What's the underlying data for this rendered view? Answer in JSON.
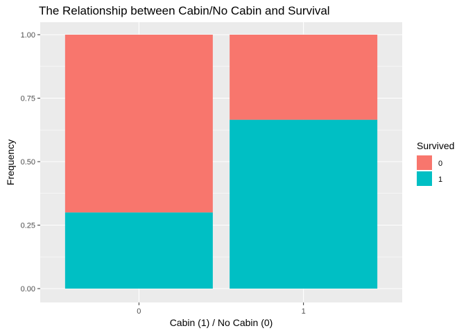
{
  "chart_data": {
    "type": "bar",
    "stacked": true,
    "title": "The Relationship between Cabin/No Cabin and Survival",
    "xlabel": "Cabin (1) / No Cabin (0)",
    "ylabel": "Frequency",
    "categories": [
      "0",
      "1"
    ],
    "series": [
      {
        "name": "0",
        "color": "#F8766D",
        "values": [
          0.7,
          0.335
        ]
      },
      {
        "name": "1",
        "color": "#00BFC4",
        "values": [
          0.3,
          0.665
        ]
      }
    ],
    "ylim": [
      0,
      1
    ],
    "yticks": [
      "0.00",
      "0.25",
      "0.50",
      "0.75",
      "1.00"
    ],
    "legend": {
      "title": "Survived",
      "position": "right"
    },
    "grid": true,
    "panel_background": "#EBEBEB"
  }
}
